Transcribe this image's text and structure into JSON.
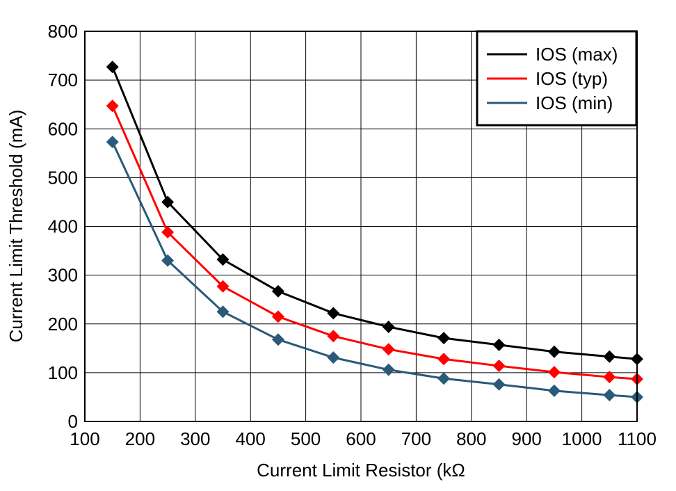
{
  "chart_data": {
    "type": "line",
    "title": "",
    "xlabel": "Current Limit Resistor (kΩ",
    "ylabel": "Current Limit Threshold (mA)",
    "xlim": [
      100,
      1100
    ],
    "ylim": [
      0,
      800
    ],
    "xticks": [
      100,
      200,
      300,
      400,
      500,
      600,
      700,
      800,
      900,
      1000,
      1100
    ],
    "yticks": [
      0,
      100,
      200,
      300,
      400,
      500,
      600,
      700,
      800
    ],
    "grid": true,
    "legend_position": "top-right",
    "marker": "diamond",
    "x": [
      150,
      250,
      350,
      450,
      550,
      650,
      750,
      850,
      950,
      1050,
      1100
    ],
    "series": [
      {
        "name": "IOS (max)",
        "color": "#000000",
        "values": [
          727,
          450,
          332,
          267,
          222,
          194,
          171,
          157,
          143,
          133,
          128
        ]
      },
      {
        "name": "IOS (typ)",
        "color": "#ff0000",
        "values": [
          647,
          388,
          277,
          215,
          175,
          148,
          128,
          114,
          101,
          91,
          87
        ]
      },
      {
        "name": "IOS (min)",
        "color": "#2a5a78",
        "values": [
          573,
          330,
          225,
          168,
          131,
          106,
          88,
          76,
          63,
          54,
          50
        ]
      }
    ]
  }
}
